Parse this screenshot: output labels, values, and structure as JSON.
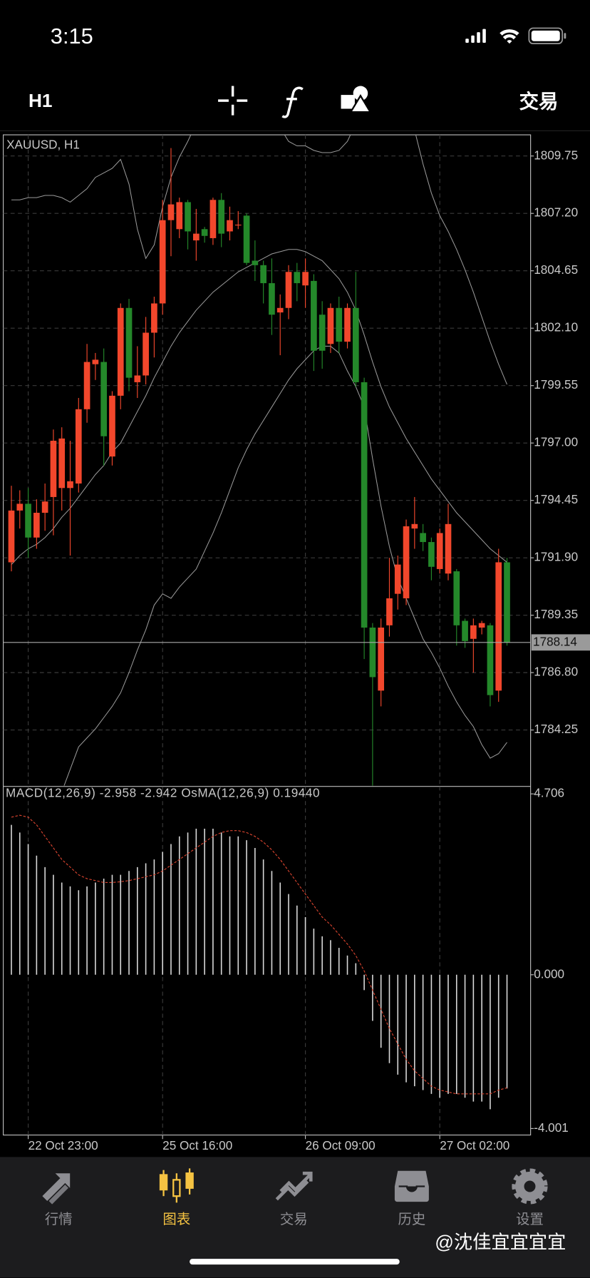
{
  "status_bar": {
    "time": "3:15"
  },
  "toolbar": {
    "timeframe": "H1",
    "trade": "交易"
  },
  "chart_data": [
    {
      "type": "candlestick",
      "title": "XAUUSD, H1",
      "categories": [
        null,
        null,
        "22 Oct 23:00",
        null,
        null,
        null,
        null,
        null,
        null,
        null,
        null,
        null,
        null,
        null,
        null,
        null,
        null,
        null,
        "25 Oct 16:00",
        null,
        null,
        null,
        null,
        null,
        null,
        null,
        null,
        null,
        null,
        null,
        null,
        null,
        null,
        null,
        null,
        "26 Oct 09:00",
        null,
        null,
        null,
        null,
        null,
        null,
        null,
        null,
        null,
        null,
        null,
        null,
        null,
        null,
        null,
        "27 Oct 02:00",
        null,
        null,
        null,
        null,
        null,
        null,
        null,
        null
      ],
      "open": [
        1791.7,
        1794.0,
        1794.3,
        1792.8,
        1793.9,
        1794.6,
        1795.0,
        1795.0,
        1795.2,
        1798.5,
        1800.5,
        1800.6,
        1796.4,
        1799.1,
        1803.0,
        1799.7,
        1800.0,
        1801.9,
        1803.2,
        1806.9,
        1806.5,
        1807.7,
        1806.0,
        1806.5,
        1806.1,
        1807.8,
        1806.4,
        1806.7,
        1807.1,
        1805.1,
        1804.9,
        1804.1,
        1802.8,
        1803.0,
        1804.6,
        1804.0,
        1804.2,
        1802.7,
        1801.4,
        1803.0,
        1801.5,
        1803.0,
        1799.7,
        1788.8,
        1786.0,
        1788.9,
        1790.3,
        1790.1,
        1793.2,
        1793.0,
        1792.6,
        1791.4,
        1791.2,
        1791.3,
        1789.1,
        1788.3,
        1788.8,
        1788.9,
        1786.0,
        1791.7
      ],
      "high": [
        1795.1,
        1794.9,
        1795.0,
        1794.5,
        1795.2,
        1797.6,
        1797.7,
        1797.1,
        1799.0,
        1801.4,
        1801.0,
        1801.2,
        1799.3,
        1803.2,
        1803.4,
        1801.3,
        1802.6,
        1803.5,
        1807.8,
        1810.1,
        1807.9,
        1807.8,
        1807.4,
        1806.6,
        1807.9,
        1808.1,
        1807.5,
        1807.3,
        1807.2,
        1806.0,
        1805.1,
        1805.2,
        1803.6,
        1804.9,
        1805.0,
        1805.2,
        1804.5,
        1803.3,
        1803.2,
        1803.5,
        1803.2,
        1804.6,
        1799.9,
        1789.0,
        1789.2,
        1791.9,
        1792.0,
        1793.6,
        1794.6,
        1793.4,
        1792.8,
        1793.2,
        1794.3,
        1791.4,
        1789.2,
        1789.2,
        1789.1,
        1789.0,
        1792.3,
        1791.9
      ],
      "low": [
        1791.3,
        1793.2,
        1791.9,
        1792.3,
        1793.1,
        1792.9,
        1794.0,
        1792.0,
        1794.8,
        1797.9,
        1799.8,
        1796.0,
        1796.0,
        1798.5,
        1799.3,
        1799.0,
        1799.6,
        1800.8,
        1802.7,
        1805.3,
        1806.1,
        1805.6,
        1805.1,
        1805.9,
        1805.8,
        1805.7,
        1806.0,
        1806.5,
        1804.9,
        1804.2,
        1803.2,
        1801.8,
        1800.9,
        1802.5,
        1803.3,
        1803.0,
        1800.2,
        1800.3,
        1801.0,
        1801.0,
        1801.2,
        1799.5,
        1787.4,
        1781.6,
        1785.3,
        1788.4,
        1789.6,
        1789.8,
        1792.3,
        1792.2,
        1790.9,
        1791.2,
        1790.9,
        1788.0,
        1787.9,
        1786.8,
        1788.5,
        1785.3,
        1785.5,
        1788.0
      ],
      "close": [
        1794.0,
        1794.3,
        1792.8,
        1793.9,
        1794.4,
        1797.1,
        1797.2,
        1795.3,
        1798.5,
        1800.6,
        1800.7,
        1797.3,
        1799.1,
        1803.0,
        1799.9,
        1800.0,
        1801.9,
        1803.2,
        1806.9,
        1807.6,
        1807.7,
        1806.4,
        1806.3,
        1806.2,
        1807.8,
        1806.3,
        1806.9,
        1806.7,
        1805.0,
        1804.9,
        1804.1,
        1802.7,
        1803.0,
        1804.6,
        1804.1,
        1804.6,
        1801.1,
        1801.1,
        1803.0,
        1801.5,
        1803.0,
        1799.7,
        1788.8,
        1786.6,
        1788.8,
        1790.1,
        1791.6,
        1793.3,
        1793.4,
        1792.6,
        1791.5,
        1793.0,
        1793.4,
        1788.9,
        1788.2,
        1788.9,
        1789.0,
        1785.8,
        1791.7,
        1788.14
      ],
      "upper": [
        1807.8,
        1807.8,
        1807.9,
        1807.9,
        1808.0,
        1808.0,
        1807.9,
        1807.7,
        1808.0,
        1808.3,
        1808.8,
        1809.0,
        1809.2,
        1809.6,
        1808.5,
        1806.5,
        1805.2,
        1805.8,
        1807.5,
        1808.8,
        1809.7,
        1810.4,
        1811.2,
        1812.0,
        1812.8,
        1813.4,
        1813.8,
        1813.9,
        1813.8,
        1813.6,
        1813.2,
        1812.0,
        1811.0,
        1810.4,
        1810.2,
        1810.2,
        1810.0,
        1809.9,
        1809.9,
        1810.0,
        1810.4,
        1811.2,
        1812.5,
        1813.4,
        1813.6,
        1813.5,
        1813.0,
        1812.0,
        1810.9,
        1809.4,
        1808.1,
        1807.1,
        1806.4,
        1805.6,
        1804.7,
        1803.7,
        1802.6,
        1801.5,
        1800.5,
        1799.6
      ],
      "middle": [
        1791.6,
        1792.0,
        1792.3,
        1792.5,
        1792.8,
        1793.2,
        1793.7,
        1794.1,
        1794.6,
        1795.1,
        1795.6,
        1796.0,
        1796.6,
        1797.0,
        1797.7,
        1798.4,
        1799.1,
        1799.9,
        1800.6,
        1801.3,
        1801.9,
        1802.4,
        1802.9,
        1803.3,
        1803.7,
        1804.0,
        1804.3,
        1804.6,
        1804.8,
        1805.0,
        1805.2,
        1805.4,
        1805.5,
        1805.6,
        1805.6,
        1805.5,
        1805.3,
        1805.1,
        1804.7,
        1804.3,
        1803.7,
        1802.9,
        1801.8,
        1800.6,
        1799.5,
        1798.6,
        1797.9,
        1797.2,
        1796.6,
        1796.0,
        1795.4,
        1794.9,
        1794.4,
        1793.9,
        1793.5,
        1793.1,
        1792.7,
        1792.3,
        1792.0,
        1791.7
      ],
      "lower": [
        1777.0,
        1777.5,
        1778.0,
        1778.6,
        1779.4,
        1780.3,
        1781.5,
        1782.5,
        1783.5,
        1783.9,
        1784.3,
        1784.8,
        1785.3,
        1785.9,
        1786.8,
        1787.8,
        1788.7,
        1789.8,
        1790.3,
        1790.1,
        1790.6,
        1791.0,
        1791.4,
        1792.2,
        1793.0,
        1793.9,
        1794.9,
        1795.9,
        1796.7,
        1797.4,
        1798.0,
        1798.6,
        1799.2,
        1799.8,
        1800.3,
        1800.7,
        1801.1,
        1801.3,
        1801.3,
        1801.0,
        1800.2,
        1799.5,
        1798.6,
        1796.3,
        1794.2,
        1792.4,
        1791.0,
        1790.1,
        1789.2,
        1788.3,
        1787.7,
        1787.0,
        1786.2,
        1785.5,
        1784.9,
        1784.4,
        1783.6,
        1783.0,
        1783.2,
        1783.7
      ],
      "up_color": "#f2472c",
      "down_color": "#24882a",
      "band_color": "#9a9a9a",
      "current_price": 1788.14,
      "ylim": [
        1781.78,
        1810.69
      ],
      "yticks": [
        1809.75,
        {
          "value": 1807.2,
          "label": "1807.20"
        },
        1804.65,
        {
          "value": 1802.1,
          "label": "1802.10"
        },
        1799.55,
        {
          "value": 1797,
          "label": "1797.00"
        },
        1794.45,
        {
          "value": 1791.9,
          "label": "1791.90"
        },
        1789.35,
        {
          "value": 1786.8,
          "label": "1786.80"
        },
        1784.25
      ],
      "grid": true
    },
    {
      "type": "histogram",
      "title": "MACD(12,26,9) -2.958 -2.942 OsMA(12,26,9) 0.19440",
      "values": [
        3.9,
        3.7,
        3.4,
        3.1,
        2.8,
        2.6,
        2.4,
        2.3,
        2.2,
        2.3,
        2.4,
        2.5,
        2.6,
        2.6,
        2.7,
        2.8,
        2.9,
        3.0,
        3.2,
        3.4,
        3.6,
        3.7,
        3.8,
        3.8,
        3.8,
        3.7,
        3.6,
        3.6,
        3.5,
        3.3,
        3.0,
        2.7,
        2.4,
        2.1,
        1.8,
        1.5,
        1.2,
        1.0,
        0.9,
        0.7,
        0.5,
        0.3,
        -0.4,
        -1.2,
        -1.9,
        -2.3,
        -2.6,
        -2.8,
        -2.9,
        -3.0,
        -3.1,
        -3.2,
        -3.1,
        -3.1,
        -3.2,
        -3.3,
        -3.3,
        -3.5,
        -3.2,
        -2.958
      ],
      "signal": [
        4.1,
        4.15,
        4.1,
        3.9,
        3.6,
        3.3,
        3.0,
        2.8,
        2.6,
        2.5,
        2.45,
        2.4,
        2.4,
        2.42,
        2.45,
        2.5,
        2.55,
        2.6,
        2.7,
        2.85,
        3.0,
        3.15,
        3.3,
        3.45,
        3.6,
        3.7,
        3.75,
        3.75,
        3.7,
        3.6,
        3.45,
        3.25,
        3.0,
        2.7,
        2.4,
        2.1,
        1.8,
        1.5,
        1.3,
        1.05,
        0.8,
        0.5,
        0.1,
        -0.4,
        -0.9,
        -1.4,
        -1.8,
        -2.2,
        -2.5,
        -2.7,
        -2.9,
        -3.0,
        -3.05,
        -3.1,
        -3.1,
        -3.1,
        -3.1,
        -3.1,
        -3.0,
        -2.942
      ],
      "color": "#d8d8d8",
      "signal_color": "#d9442f",
      "ylim": [
        -4.17,
        4.9
      ],
      "yticks": [
        4.706,
        {
          "value": 0,
          "label": "0.000"
        },
        -4.001
      ]
    }
  ],
  "tab_bar": {
    "tabs": [
      "行情",
      "图表",
      "交易",
      "历史",
      "设置"
    ],
    "active": 1
  },
  "watermark": "@沈佳宜宜宜宜"
}
